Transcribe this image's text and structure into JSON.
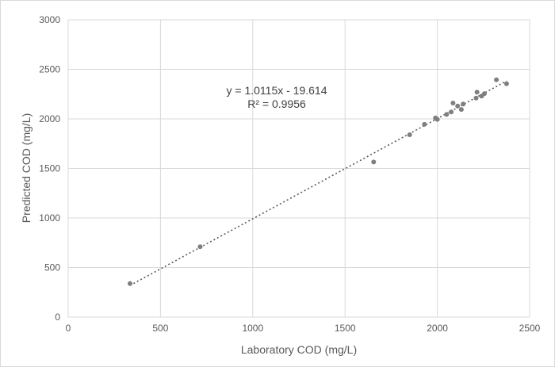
{
  "chart_data": {
    "type": "scatter",
    "xlabel": "Laboratory COD (mg/L)",
    "ylabel": "Predicted COD (mg/L)",
    "xlim": [
      0,
      2500
    ],
    "ylim": [
      0,
      3000
    ],
    "xticks": [
      0,
      500,
      1000,
      1500,
      2000,
      2500
    ],
    "yticks": [
      0,
      500,
      1000,
      1500,
      2000,
      2500,
      3000
    ],
    "grid": true,
    "marker_color": "#7f7f7f",
    "trendline_color": "#595959",
    "series": [
      {
        "points": [
          [
            335,
            338
          ],
          [
            715,
            710
          ],
          [
            1655,
            1565
          ],
          [
            1850,
            1840
          ],
          [
            1930,
            1945
          ],
          [
            1990,
            2010
          ],
          [
            2000,
            1995
          ],
          [
            2050,
            2045
          ],
          [
            2075,
            2070
          ],
          [
            2085,
            2160
          ],
          [
            2110,
            2130
          ],
          [
            2130,
            2095
          ],
          [
            2140,
            2150
          ],
          [
            2210,
            2210
          ],
          [
            2215,
            2270
          ],
          [
            2240,
            2230
          ],
          [
            2255,
            2255
          ],
          [
            2320,
            2395
          ],
          [
            2375,
            2355
          ]
        ]
      }
    ],
    "trendline": {
      "type": "linear",
      "slope": 1.0115,
      "intercept": -19.614,
      "x_range": [
        335,
        2375
      ],
      "equation_label": "y = 1.0115x - 19.614",
      "r2_label": "R² = 0.9956"
    }
  }
}
